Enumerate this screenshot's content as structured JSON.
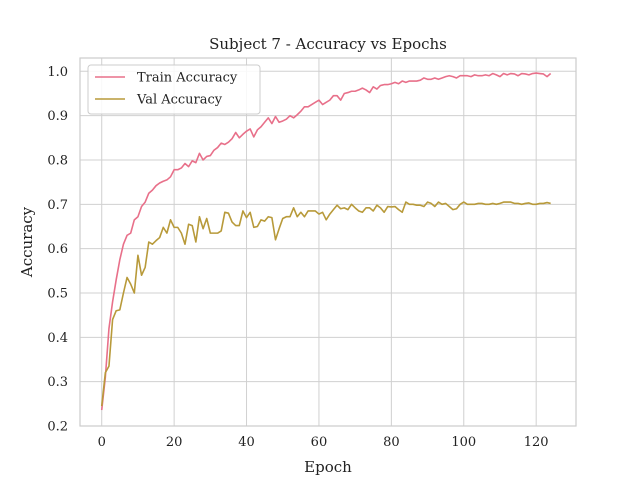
{
  "chart_data": {
    "type": "line",
    "title": "Subject 7 - Accuracy vs Epochs",
    "xlabel": "Epoch",
    "ylabel": "Accuracy",
    "xlim": [
      -6,
      131
    ],
    "ylim": [
      0.2,
      1.03
    ],
    "xticks": [
      0,
      20,
      40,
      60,
      80,
      100,
      120
    ],
    "yticks": [
      0.2,
      0.3,
      0.4,
      0.5,
      0.6,
      0.7,
      0.8,
      0.9,
      1.0
    ],
    "ytick_labels": [
      "0.2",
      "0.3",
      "0.4",
      "0.5",
      "0.6",
      "0.7",
      "0.8",
      "0.9",
      "1.0"
    ],
    "grid": true,
    "legend_position": "top-left",
    "x": [
      0,
      1,
      2,
      3,
      4,
      5,
      6,
      7,
      8,
      9,
      10,
      11,
      12,
      13,
      14,
      15,
      16,
      17,
      18,
      19,
      20,
      21,
      22,
      23,
      24,
      25,
      26,
      27,
      28,
      29,
      30,
      31,
      32,
      33,
      34,
      35,
      36,
      37,
      38,
      39,
      40,
      41,
      42,
      43,
      44,
      45,
      46,
      47,
      48,
      49,
      50,
      51,
      52,
      53,
      54,
      55,
      56,
      57,
      58,
      59,
      60,
      61,
      62,
      63,
      64,
      65,
      66,
      67,
      68,
      69,
      70,
      71,
      72,
      73,
      74,
      75,
      76,
      77,
      78,
      79,
      80,
      81,
      82,
      83,
      84,
      85,
      86,
      87,
      88,
      89,
      90,
      91,
      92,
      93,
      94,
      95,
      96,
      97,
      98,
      99,
      100,
      101,
      102,
      103,
      104,
      105,
      106,
      107,
      108,
      109,
      110,
      111,
      112,
      113,
      114,
      115,
      116,
      117,
      118,
      119,
      120,
      121,
      122,
      123,
      124
    ],
    "series": [
      {
        "name": "Train Accuracy",
        "color": "#e8708a",
        "values": [
          0.236,
          0.31,
          0.42,
          0.48,
          0.53,
          0.575,
          0.61,
          0.63,
          0.635,
          0.665,
          0.672,
          0.695,
          0.705,
          0.725,
          0.732,
          0.742,
          0.748,
          0.752,
          0.755,
          0.762,
          0.778,
          0.778,
          0.782,
          0.792,
          0.785,
          0.798,
          0.794,
          0.815,
          0.8,
          0.808,
          0.81,
          0.822,
          0.828,
          0.838,
          0.835,
          0.84,
          0.848,
          0.862,
          0.85,
          0.858,
          0.865,
          0.87,
          0.852,
          0.868,
          0.875,
          0.885,
          0.895,
          0.882,
          0.898,
          0.885,
          0.888,
          0.892,
          0.9,
          0.895,
          0.902,
          0.91,
          0.92,
          0.92,
          0.925,
          0.93,
          0.935,
          0.925,
          0.93,
          0.935,
          0.945,
          0.945,
          0.935,
          0.95,
          0.952,
          0.955,
          0.955,
          0.958,
          0.962,
          0.958,
          0.952,
          0.965,
          0.96,
          0.968,
          0.97,
          0.97,
          0.972,
          0.975,
          0.972,
          0.978,
          0.975,
          0.978,
          0.978,
          0.978,
          0.98,
          0.985,
          0.982,
          0.982,
          0.985,
          0.982,
          0.985,
          0.988,
          0.99,
          0.988,
          0.985,
          0.99,
          0.99,
          0.99,
          0.988,
          0.992,
          0.99,
          0.99,
          0.992,
          0.99,
          0.995,
          0.992,
          0.988,
          0.995,
          0.992,
          0.995,
          0.994,
          0.99,
          0.995,
          0.994,
          0.992,
          0.995,
          0.996,
          0.995,
          0.994,
          0.988,
          0.995
        ]
      },
      {
        "name": "Val Accuracy",
        "color": "#b89a3a",
        "values": [
          0.245,
          0.32,
          0.335,
          0.44,
          0.46,
          0.462,
          0.5,
          0.535,
          0.52,
          0.5,
          0.585,
          0.54,
          0.558,
          0.615,
          0.61,
          0.618,
          0.625,
          0.648,
          0.635,
          0.665,
          0.648,
          0.648,
          0.635,
          0.61,
          0.655,
          0.652,
          0.615,
          0.672,
          0.645,
          0.668,
          0.635,
          0.635,
          0.635,
          0.64,
          0.682,
          0.68,
          0.66,
          0.652,
          0.652,
          0.685,
          0.67,
          0.682,
          0.648,
          0.65,
          0.665,
          0.662,
          0.672,
          0.67,
          0.62,
          0.645,
          0.668,
          0.672,
          0.672,
          0.692,
          0.672,
          0.682,
          0.672,
          0.685,
          0.685,
          0.685,
          0.678,
          0.682,
          0.665,
          0.678,
          0.688,
          0.698,
          0.69,
          0.692,
          0.688,
          0.7,
          0.692,
          0.685,
          0.682,
          0.692,
          0.692,
          0.685,
          0.698,
          0.692,
          0.682,
          0.695,
          0.694,
          0.695,
          0.688,
          0.682,
          0.705,
          0.7,
          0.7,
          0.698,
          0.698,
          0.695,
          0.705,
          0.702,
          0.695,
          0.705,
          0.7,
          0.702,
          0.695,
          0.688,
          0.69,
          0.7,
          0.705,
          0.7,
          0.7,
          0.7,
          0.702,
          0.702,
          0.7,
          0.7,
          0.702,
          0.7,
          0.702,
          0.705,
          0.705,
          0.705,
          0.702,
          0.702,
          0.7,
          0.702,
          0.703,
          0.7,
          0.7,
          0.702,
          0.702,
          0.704,
          0.702
        ]
      }
    ]
  }
}
